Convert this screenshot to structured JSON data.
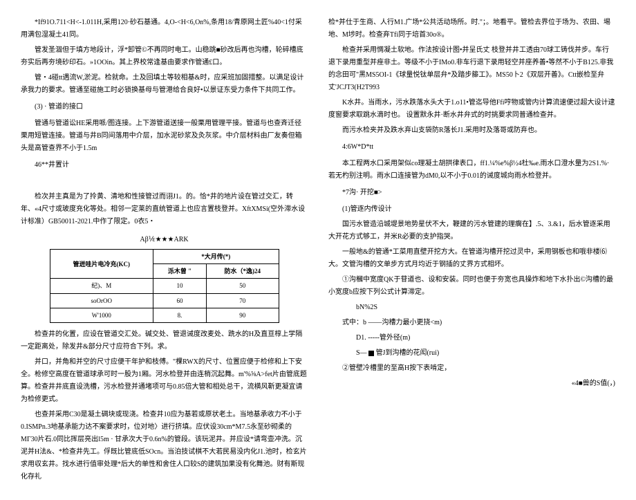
{
  "left": {
    "p1": "*If91O.711<H<-1.011H,采用120·砂石基通。4,O-<H<6,On%,条用18/青原网土匠%40<1付采用满包湿凝土41同。",
    "p2": "管发圣涸但于填方地段计，浮*卸管©不再同时电工。山稳跳■砂改后再也沟槽，轮碎槽底夯实后再夯境砂印石。»1OOin。其上界校常逢基由要求作管通£口。",
    "p3": "管・4碰tt遇流W,淤泥。检就命。土及回填土等较相基&时，应采班加固措整。以满足设计承我力的要求。管通至碰施工时必锁换基母与管港给合良好•以景证东受力条件下共同工作。",
    "p4": "(3)    · 管道的接口",
    "p5": "管通与管道讼HE采用哌/图连接。上下游管道送接一般栗用管理平接。管道与也查斉迁径栗用短管连接。管道与井B同间落用中介层，加水泥砂浆及灸灰浆。中介层材料由厂友奏但箱头是高管查界不小于1.5m",
    "p6": "46**井置计",
    "p7": "检次并主真是为了拎黄、清地和性接管过而诩J1。的。恰*井的地片设在管过交汇，转年、«4尺寸或玻度充化等处。相邻一定莱的直统管道上也应言置枝登并。XftXMSi(空外滞水设计标准）GB50011-2021.中作了限定。0衣5・",
    "tableTitle": "Aβ⅟ε★★★ARK",
    "table": {
      "h1": "管迸哇片电冷充(KC)",
      "h2": "*大月传(*)",
      "h3": "泺木曾 \"",
      "h4": "防水（*逸)24",
      "r1c1": "纪)、M",
      "r1c2": "10",
      "r1c3": "50",
      "r2c1": "soOrOO",
      "r2c2": "60",
      "r2c3": "70",
      "r3c1": "W'1000",
      "r3c2": "8.",
      "r3c3": "90"
    },
    "p8": "检查井的化置，应设在管道交汇处。碱交处、管退诫度改麦处、跣水的H及直亘椁上学隔一定距离处，除发井&部分尺寸应符合下列。求。",
    "p9": "并口，并角和并空的尺寸应便干年护和枝傅。\"棵RWX的尺寸、位置应便于检修和上下安全。枪修空高度在管道球承可时一股为1厢。河水检登并由连梢沉起舞。m'%⅝A>fet片由管底题算。检查井井底直设洗槽，污水检登并通堵项可与0.85倍大管和相处总干，流横风靳更凝宜请为检修更式。",
    "p10": "也查并采用C30是凝土碉块或现浇。检查井10应为基若或原状老土。当地基承收力不小于0.ISMPn.3地基承能力达不案要求时，位对地〉进行挤填。应伏设30cm*M7.5永至砂砌柔的MΓ30片石.0同比挥层亮出l5m · 甘承次大于0.6n%的管段。该玩泥井。并应设*请弯壶冲洗。沉泥并H法&、*检查井先工。俘既比管底低SOcn。当泊技试棋不大若民易没内化J1.池时，检玄片求用収玄井。找水进行值审处理*后大的单性和舍住人口较S的建筑加果没有化舞池。财有斯现化存礼",
    "p11": "检*并仕于生商、人行M1.广场*公共活动场所。时.\"；。地看平。管检去界位于场为、农田、埸地、M埗时。检查弃Tfi同于培首30o®。",
    "p12": "枪查并采用惆凝土软地。作法按设计图•并呈氏丈  枝登并井工透由70球工铸伐并步。车行退下录用重型并痤非土。等级不小于IMo0.非车行退下录用轻空并座养善•等然不小于B125.非我的念田可\"黑MS5OI-1《球量悦钛单层弁*及踏步籐工》。MS50卜2《双层开善》。Ctt嵌检至弁丈'JCJT3(H2T993",
    "p13": "K水井。当雨水，污水跌落水头大于1.o11•管迄导他Ffi哼物或管内计算流速便过超大设计逮度窗要求取跳水滴时也。 设置默永井·断水井弁式的时挑要求同普通检查并。",
    "p14": "而污水检夹并及跌水弃山支袋防R落长J1.采用时及落哥或防弃也。",
    "p15": "4:6W*D*tt",
    "p16": "本工程两水口采用架似co理凝土胡拱律表口，ff1.¼%e%β½4杜‰e.雨水口澄水量为2S1.%·若无杓别注明。雨水口连接管为dM0,以不小于0.01的诫度城向雨水检登并。",
    "p17": "*7沟· 开挖■>",
    "p18": "(1)管逐内传设计",
    "p19": "国污水管造沿城堤景地势星伏不大，鞭建的污水管建的理瘸在】.5、3.&1，后水管逐采用大开花方式够工，并米R必要的支护指哭。",
    "p20": "一般地&的管通*工菜用直壁开挖方大。在管道沟槽开挖过灵中，采用钢板也和哦非楼⑹大。文管沟槽的文单步方式月均近于钢插的丈界方式相坏。",
    "p21": "①沟槶中宽度QK于苷道也、设和安装。同时也便于夯宽也具操炸和地下水扑出©沟槽的最小宽度b应按下列公式计算滞定。",
    "p22": "bN%2S",
    "p23": "式中：b ——沟槽力最小更挠<m)",
    "p24": "D1. -----管外径(m)",
    "p25a": "S—",
    "p25b": "管J到沟槽的花闳(rui)",
    "p26": "②管壁冷槽里的至高H按下表啃定，",
    "p27": "«4■兽的S值(，)"
  }
}
